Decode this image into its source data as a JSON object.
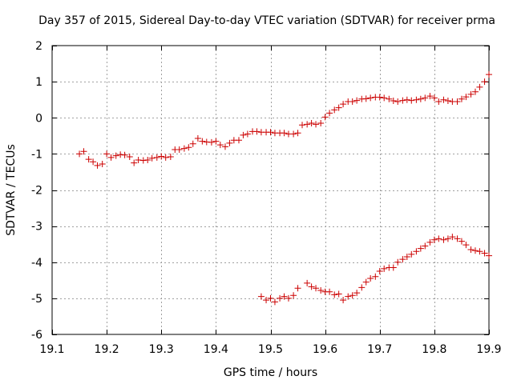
{
  "chart_data": {
    "type": "scatter",
    "title": "Day 357 of 2015, Sidereal Day-to-day VTEC variation (SDTVAR) for receiver prma",
    "xlabel": "GPS time / hours",
    "ylabel": "SDTVAR / TECUs",
    "xlim": [
      19.1,
      19.9
    ],
    "ylim": [
      -6,
      2
    ],
    "xticks": [
      19.1,
      19.2,
      19.3,
      19.4,
      19.5,
      19.6,
      19.7,
      19.8,
      19.9
    ],
    "xtick_labels": [
      "19.1",
      "19.2",
      "19.3",
      "19.4",
      "19.5",
      "19.6",
      "19.7",
      "19.8",
      "19.9"
    ],
    "yticks": [
      2,
      1,
      0,
      -1,
      -2,
      -3,
      -4,
      -5,
      -6
    ],
    "ytick_labels": [
      "2",
      "1",
      "0",
      "-1",
      "-2",
      "-3",
      "-4",
      "-5",
      "-6"
    ],
    "grid": true,
    "marker": "+",
    "color": "#cc0000",
    "series": [
      {
        "name": "upper",
        "x": [
          19.15,
          19.158,
          19.167,
          19.175,
          19.183,
          19.192,
          19.2,
          19.208,
          19.217,
          19.225,
          19.233,
          19.242,
          19.25,
          19.258,
          19.267,
          19.275,
          19.283,
          19.292,
          19.3,
          19.308,
          19.317,
          19.325,
          19.333,
          19.342,
          19.35,
          19.358,
          19.367,
          19.375,
          19.383,
          19.392,
          19.4,
          19.408,
          19.417,
          19.425,
          19.433,
          19.442,
          19.45,
          19.458,
          19.467,
          19.475,
          19.483,
          19.492,
          19.5,
          19.508,
          19.517,
          19.525,
          19.533,
          19.542,
          19.55,
          19.558,
          19.567,
          19.575,
          19.583,
          19.592,
          19.6,
          19.608,
          19.617,
          19.625,
          19.633,
          19.642,
          19.65,
          19.658,
          19.667,
          19.675,
          19.683,
          19.692,
          19.7,
          19.708,
          19.717,
          19.725,
          19.733,
          19.742,
          19.75,
          19.758,
          19.767,
          19.775,
          19.783,
          19.792,
          19.8,
          19.808,
          19.817,
          19.825,
          19.833,
          19.842,
          19.85,
          19.858,
          19.867,
          19.875,
          19.883,
          19.892,
          19.9
        ],
        "y": [
          -1.0,
          -0.93,
          -1.15,
          -1.22,
          -1.32,
          -1.28,
          -1.0,
          -1.1,
          -1.05,
          -1.02,
          -1.03,
          -1.08,
          -1.25,
          -1.17,
          -1.18,
          -1.17,
          -1.12,
          -1.1,
          -1.07,
          -1.1,
          -1.08,
          -0.88,
          -0.88,
          -0.85,
          -0.82,
          -0.72,
          -0.57,
          -0.65,
          -0.67,
          -0.68,
          -0.65,
          -0.75,
          -0.8,
          -0.7,
          -0.62,
          -0.62,
          -0.48,
          -0.45,
          -0.38,
          -0.38,
          -0.4,
          -0.4,
          -0.4,
          -0.42,
          -0.42,
          -0.42,
          -0.45,
          -0.45,
          -0.42,
          -0.2,
          -0.18,
          -0.15,
          -0.18,
          -0.15,
          0.02,
          0.13,
          0.22,
          0.28,
          0.38,
          0.45,
          0.45,
          0.48,
          0.52,
          0.53,
          0.55,
          0.57,
          0.57,
          0.55,
          0.52,
          0.47,
          0.45,
          0.48,
          0.5,
          0.48,
          0.5,
          0.52,
          0.55,
          0.6,
          0.55,
          0.45,
          0.5,
          0.47,
          0.45,
          0.45,
          0.52,
          0.58,
          0.65,
          0.72,
          0.85,
          1.0,
          1.2
        ]
      },
      {
        "name": "lower",
        "x": [
          19.483,
          19.492,
          19.5,
          19.508,
          19.517,
          19.525,
          19.533,
          19.542,
          19.55,
          19.567,
          19.575,
          19.583,
          19.592,
          19.6,
          19.608,
          19.617,
          19.625,
          19.633,
          19.642,
          19.65,
          19.658,
          19.667,
          19.675,
          19.683,
          19.692,
          19.7,
          19.708,
          19.717,
          19.725,
          19.733,
          19.742,
          19.75,
          19.758,
          19.767,
          19.775,
          19.783,
          19.792,
          19.8,
          19.808,
          19.817,
          19.825,
          19.833,
          19.842,
          19.85,
          19.858,
          19.867,
          19.875,
          19.883,
          19.892,
          19.9
        ],
        "y": [
          -4.95,
          -5.05,
          -5.0,
          -5.1,
          -5.0,
          -4.95,
          -5.0,
          -4.92,
          -4.72,
          -4.58,
          -4.68,
          -4.72,
          -4.78,
          -4.82,
          -4.82,
          -4.9,
          -4.88,
          -5.05,
          -4.95,
          -4.92,
          -4.85,
          -4.7,
          -4.55,
          -4.45,
          -4.4,
          -4.25,
          -4.18,
          -4.15,
          -4.15,
          -4.0,
          -3.92,
          -3.85,
          -3.78,
          -3.7,
          -3.62,
          -3.55,
          -3.45,
          -3.38,
          -3.35,
          -3.38,
          -3.35,
          -3.3,
          -3.35,
          -3.42,
          -3.52,
          -3.65,
          -3.68,
          -3.7,
          -3.75,
          -3.82
        ]
      }
    ]
  }
}
